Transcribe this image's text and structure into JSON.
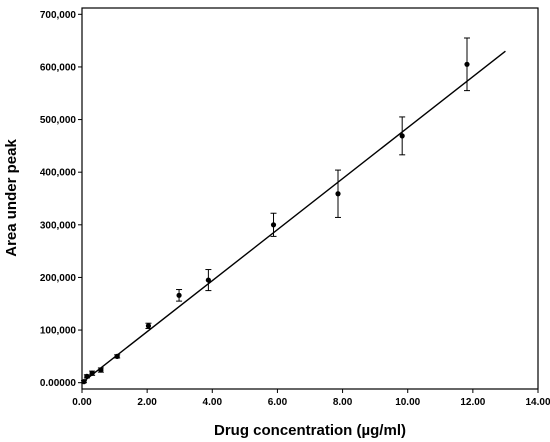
{
  "chart_data": {
    "type": "scatter",
    "title": "",
    "xlabel": "Drug concentration (µg/ml)",
    "ylabel": "Area under peak",
    "xlim": [
      0,
      14
    ],
    "ylim": [
      -12000,
      712000
    ],
    "grid": false,
    "legend": "none",
    "x_ticks": [
      {
        "value": 0,
        "label": "0.00"
      },
      {
        "value": 2,
        "label": "2.00"
      },
      {
        "value": 4,
        "label": "4.00"
      },
      {
        "value": 6,
        "label": "6.00"
      },
      {
        "value": 8,
        "label": "8.00"
      },
      {
        "value": 10,
        "label": "10.00"
      },
      {
        "value": 12,
        "label": "12.00"
      },
      {
        "value": 14,
        "label": "14.00"
      }
    ],
    "y_ticks": [
      {
        "value": 0,
        "label": "0.00000"
      },
      {
        "value": 100000,
        "label": "100,000"
      },
      {
        "value": 200000,
        "label": "200,000"
      },
      {
        "value": 300000,
        "label": "300,000"
      },
      {
        "value": 400000,
        "label": "400,000"
      },
      {
        "value": 500000,
        "label": "500,000"
      },
      {
        "value": 600000,
        "label": "600,000"
      },
      {
        "value": 700000,
        "label": "700,000"
      }
    ],
    "points": [
      {
        "x": 0.06,
        "y": 2000,
        "err": 2000
      },
      {
        "x": 0.15,
        "y": 12000,
        "err": 3000
      },
      {
        "x": 0.31,
        "y": 18000,
        "err": 4000
      },
      {
        "x": 0.58,
        "y": 24000,
        "err": 4000
      },
      {
        "x": 1.08,
        "y": 50000,
        "err": 3000
      },
      {
        "x": 2.04,
        "y": 108000,
        "err": 5000
      },
      {
        "x": 2.98,
        "y": 166000,
        "err": 11000
      },
      {
        "x": 3.88,
        "y": 195000,
        "err": 20000
      },
      {
        "x": 5.88,
        "y": 300000,
        "err": 22000
      },
      {
        "x": 7.86,
        "y": 359000,
        "err": 45000
      },
      {
        "x": 9.83,
        "y": 469000,
        "err": 36000
      },
      {
        "x": 11.82,
        "y": 605000,
        "err": 50000
      }
    ],
    "fit_line": {
      "x": [
        0,
        13
      ],
      "y": [
        0,
        630000
      ]
    },
    "colors": {
      "points": "#000000",
      "line": "#000000",
      "frame": "#000000"
    }
  }
}
